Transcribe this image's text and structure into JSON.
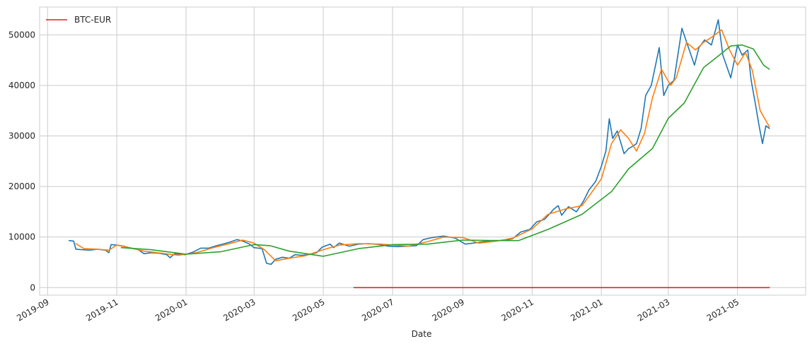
{
  "chart_data": {
    "type": "line",
    "xlabel": "Date",
    "ylabel": "",
    "grid": true,
    "legend_placement": "top-left",
    "xlim": [
      "2019-08-25",
      "2021-06-30"
    ],
    "ylim": [
      -1500,
      55500
    ],
    "x_ticks": [
      "2019-09",
      "2019-11",
      "2020-01",
      "2020-03",
      "2020-05",
      "2020-07",
      "2020-09",
      "2020-11",
      "2021-01",
      "2021-03",
      "2021-05"
    ],
    "y_ticks": [
      0,
      10000,
      20000,
      30000,
      40000,
      50000
    ],
    "series": [
      {
        "color": "#1f77b4",
        "points": [
          [
            "2019-09-20",
            9300
          ],
          [
            "2019-09-24",
            9200
          ],
          [
            "2019-09-26",
            7600
          ],
          [
            "2019-10-01",
            7500
          ],
          [
            "2019-10-08",
            7400
          ],
          [
            "2019-10-15",
            7600
          ],
          [
            "2019-10-22",
            7400
          ],
          [
            "2019-10-25",
            6900
          ],
          [
            "2019-10-27",
            8500
          ],
          [
            "2019-11-01",
            8400
          ],
          [
            "2019-11-07",
            8200
          ],
          [
            "2019-11-14",
            7800
          ],
          [
            "2019-11-20",
            7500
          ],
          [
            "2019-11-25",
            6700
          ],
          [
            "2019-12-01",
            6900
          ],
          [
            "2019-12-08",
            6800
          ],
          [
            "2019-12-15",
            6500
          ],
          [
            "2019-12-18",
            5900
          ],
          [
            "2019-12-22",
            6700
          ],
          [
            "2019-12-31",
            6500
          ],
          [
            "2020-01-07",
            7000
          ],
          [
            "2020-01-14",
            7800
          ],
          [
            "2020-01-21",
            7800
          ],
          [
            "2020-01-28",
            8300
          ],
          [
            "2020-02-04",
            8700
          ],
          [
            "2020-02-10",
            9100
          ],
          [
            "2020-02-15",
            9500
          ],
          [
            "2020-02-20",
            9200
          ],
          [
            "2020-02-26",
            8600
          ],
          [
            "2020-03-01",
            7900
          ],
          [
            "2020-03-08",
            7700
          ],
          [
            "2020-03-12",
            4800
          ],
          [
            "2020-03-16",
            4600
          ],
          [
            "2020-03-20",
            5600
          ],
          [
            "2020-03-26",
            6000
          ],
          [
            "2020-04-01",
            5800
          ],
          [
            "2020-04-06",
            6500
          ],
          [
            "2020-04-12",
            6400
          ],
          [
            "2020-04-18",
            6500
          ],
          [
            "2020-04-25",
            6900
          ],
          [
            "2020-04-30",
            8000
          ],
          [
            "2020-05-07",
            8600
          ],
          [
            "2020-05-10",
            7900
          ],
          [
            "2020-05-15",
            8800
          ],
          [
            "2020-05-24",
            8200
          ],
          [
            "2020-06-01",
            8600
          ],
          [
            "2020-06-10",
            8700
          ],
          [
            "2020-06-20",
            8500
          ],
          [
            "2020-06-27",
            8200
          ],
          [
            "2020-07-05",
            8100
          ],
          [
            "2020-07-15",
            8200
          ],
          [
            "2020-07-22",
            8300
          ],
          [
            "2020-07-28",
            9500
          ],
          [
            "2020-08-05",
            9900
          ],
          [
            "2020-08-15",
            10200
          ],
          [
            "2020-08-25",
            9800
          ],
          [
            "2020-09-03",
            8600
          ],
          [
            "2020-09-10",
            8800
          ],
          [
            "2020-09-20",
            9100
          ],
          [
            "2020-09-28",
            9300
          ],
          [
            "2020-10-08",
            9300
          ],
          [
            "2020-10-15",
            9700
          ],
          [
            "2020-10-22",
            11000
          ],
          [
            "2020-10-30",
            11500
          ],
          [
            "2020-11-05",
            13000
          ],
          [
            "2020-11-12",
            13500
          ],
          [
            "2020-11-20",
            15500
          ],
          [
            "2020-11-24",
            16200
          ],
          [
            "2020-11-27",
            14300
          ],
          [
            "2020-12-03",
            16000
          ],
          [
            "2020-12-10",
            15000
          ],
          [
            "2020-12-16",
            17000
          ],
          [
            "2020-12-21",
            19300
          ],
          [
            "2020-12-27",
            21000
          ],
          [
            "2021-01-01",
            24000
          ],
          [
            "2021-01-05",
            27000
          ],
          [
            "2021-01-08",
            33400
          ],
          [
            "2021-01-11",
            29500
          ],
          [
            "2021-01-15",
            31000
          ],
          [
            "2021-01-21",
            26500
          ],
          [
            "2021-01-25",
            27500
          ],
          [
            "2021-01-29",
            28000
          ],
          [
            "2021-02-01",
            28500
          ],
          [
            "2021-02-05",
            31500
          ],
          [
            "2021-02-09",
            38000
          ],
          [
            "2021-02-14",
            40000
          ],
          [
            "2021-02-21",
            47500
          ],
          [
            "2021-02-25",
            38000
          ],
          [
            "2021-03-01",
            40000
          ],
          [
            "2021-03-06",
            41000
          ],
          [
            "2021-03-13",
            51300
          ],
          [
            "2021-03-18",
            48000
          ],
          [
            "2021-03-24",
            44000
          ],
          [
            "2021-03-28",
            47500
          ],
          [
            "2021-04-02",
            49000
          ],
          [
            "2021-04-08",
            48000
          ],
          [
            "2021-04-14",
            53000
          ],
          [
            "2021-04-18",
            46000
          ],
          [
            "2021-04-25",
            41500
          ],
          [
            "2021-05-01",
            48000
          ],
          [
            "2021-05-05",
            46000
          ],
          [
            "2021-05-10",
            47000
          ],
          [
            "2021-05-13",
            41000
          ],
          [
            "2021-05-17",
            36000
          ],
          [
            "2021-05-20",
            32000
          ],
          [
            "2021-05-23",
            28500
          ],
          [
            "2021-05-26",
            32000
          ],
          [
            "2021-05-29",
            31500
          ]
        ]
      },
      {
        "color": "#ff7f0e",
        "points": [
          [
            "2019-09-26",
            8700
          ],
          [
            "2019-10-03",
            7700
          ],
          [
            "2019-10-15",
            7600
          ],
          [
            "2019-10-25",
            7400
          ],
          [
            "2019-11-01",
            8400
          ],
          [
            "2019-11-10",
            8000
          ],
          [
            "2019-11-25",
            7200
          ],
          [
            "2019-12-10",
            6800
          ],
          [
            "2019-12-25",
            6400
          ],
          [
            "2020-01-10",
            6900
          ],
          [
            "2020-01-25",
            7900
          ],
          [
            "2020-02-10",
            8800
          ],
          [
            "2020-02-20",
            9400
          ],
          [
            "2020-03-01",
            8800
          ],
          [
            "2020-03-10",
            7500
          ],
          [
            "2020-03-20",
            5300
          ],
          [
            "2020-04-01",
            5800
          ],
          [
            "2020-04-15",
            6300
          ],
          [
            "2020-05-01",
            7500
          ],
          [
            "2020-05-15",
            8400
          ],
          [
            "2020-06-01",
            8700
          ],
          [
            "2020-06-20",
            8600
          ],
          [
            "2020-07-15",
            8200
          ],
          [
            "2020-08-01",
            9100
          ],
          [
            "2020-08-15",
            10000
          ],
          [
            "2020-09-01",
            9900
          ],
          [
            "2020-09-15",
            8800
          ],
          [
            "2020-10-01",
            9200
          ],
          [
            "2020-10-15",
            9800
          ],
          [
            "2020-11-01",
            11600
          ],
          [
            "2020-11-15",
            14500
          ],
          [
            "2020-12-01",
            15600
          ],
          [
            "2020-12-15",
            16200
          ],
          [
            "2021-01-01",
            21500
          ],
          [
            "2021-01-10",
            28500
          ],
          [
            "2021-01-18",
            31200
          ],
          [
            "2021-01-25",
            29500
          ],
          [
            "2021-02-01",
            27000
          ],
          [
            "2021-02-08",
            30500
          ],
          [
            "2021-02-15",
            37500
          ],
          [
            "2021-02-23",
            43200
          ],
          [
            "2021-03-03",
            40000
          ],
          [
            "2021-03-08",
            41500
          ],
          [
            "2021-03-17",
            48500
          ],
          [
            "2021-03-25",
            47000
          ],
          [
            "2021-04-01",
            48500
          ],
          [
            "2021-04-08",
            49500
          ],
          [
            "2021-04-17",
            51000
          ],
          [
            "2021-04-24",
            47000
          ],
          [
            "2021-05-01",
            44000
          ],
          [
            "2021-05-08",
            46500
          ],
          [
            "2021-05-14",
            43000
          ],
          [
            "2021-05-21",
            35000
          ],
          [
            "2021-05-29",
            31800
          ]
        ]
      },
      {
        "color": "#2ca02c",
        "points": [
          [
            "2019-11-05",
            7900
          ],
          [
            "2019-12-01",
            7500
          ],
          [
            "2020-01-01",
            6600
          ],
          [
            "2020-02-01",
            7100
          ],
          [
            "2020-03-01",
            8500
          ],
          [
            "2020-03-15",
            8300
          ],
          [
            "2020-04-01",
            7200
          ],
          [
            "2020-05-01",
            6200
          ],
          [
            "2020-06-01",
            7700
          ],
          [
            "2020-07-01",
            8500
          ],
          [
            "2020-08-01",
            8600
          ],
          [
            "2020-09-01",
            9400
          ],
          [
            "2020-10-01",
            9300
          ],
          [
            "2020-10-20",
            9300
          ],
          [
            "2020-11-15",
            11500
          ],
          [
            "2020-12-15",
            14500
          ],
          [
            "2021-01-10",
            19000
          ],
          [
            "2021-01-25",
            23500
          ],
          [
            "2021-02-15",
            27500
          ],
          [
            "2021-03-01",
            33500
          ],
          [
            "2021-03-15",
            36500
          ],
          [
            "2021-04-01",
            43500
          ],
          [
            "2021-04-15",
            46000
          ],
          [
            "2021-04-25",
            47800
          ],
          [
            "2021-05-05",
            48000
          ],
          [
            "2021-05-15",
            47200
          ],
          [
            "2021-05-24",
            44000
          ],
          [
            "2021-05-29",
            43200
          ]
        ]
      },
      {
        "name": "BTC-EUR",
        "color": "#d62728",
        "points": [
          [
            "2020-05-28",
            0
          ],
          [
            "2021-05-29",
            0
          ]
        ]
      }
    ]
  }
}
